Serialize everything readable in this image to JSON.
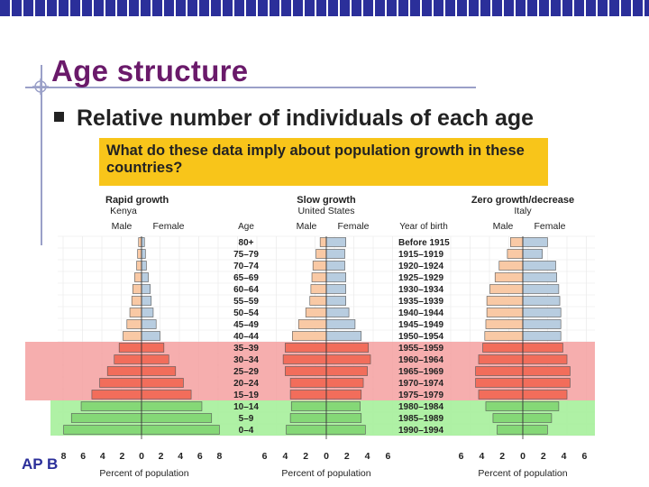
{
  "slide": {
    "title": "Age structure",
    "bullet": "Relative number of individuals of each age",
    "question": "What do these data imply about population growth in these countries?",
    "footer": "AP B"
  },
  "chart_data": {
    "type": "bar",
    "subtype": "population-pyramids",
    "age_groups": [
      "80+",
      "75–79",
      "70–74",
      "65–69",
      "60–64",
      "55–59",
      "50–54",
      "45–49",
      "40–44",
      "35–39",
      "30–34",
      "25–29",
      "20–24",
      "15–19",
      "10–14",
      "5–9",
      "0–4"
    ],
    "years_of_birth": [
      "Before 1915",
      "1915–1919",
      "1920–1924",
      "1925–1929",
      "1930–1934",
      "1935–1939",
      "1940–1944",
      "1945–1949",
      "1950–1954",
      "1955–1959",
      "1960–1964",
      "1965–1969",
      "1970–1974",
      "1975–1979",
      "1980–1984",
      "1985–1989",
      "1990–1994"
    ],
    "column_headers": {
      "age": "Age",
      "year_of_birth": "Year of birth"
    },
    "sex_labels": {
      "male": "Male",
      "female": "Female"
    },
    "xlabel": "Percent of population",
    "pyramids": [
      {
        "heading": "Rapid growth",
        "country": "Kenya",
        "ticks": [
          "8",
          "6",
          "4",
          "2",
          "0",
          "2",
          "4",
          "6",
          "8"
        ],
        "xmax": 8,
        "male": [
          0.3,
          0.4,
          0.5,
          0.7,
          0.9,
          1.0,
          1.2,
          1.5,
          1.9,
          2.3,
          2.8,
          3.5,
          4.3,
          5.1,
          6.2,
          7.2,
          8.0
        ],
        "female": [
          0.3,
          0.4,
          0.5,
          0.7,
          0.9,
          1.0,
          1.2,
          1.5,
          1.9,
          2.3,
          2.8,
          3.5,
          4.3,
          5.1,
          6.2,
          7.2,
          8.0
        ]
      },
      {
        "heading": "Slow growth",
        "country": "United States",
        "ticks": [
          "6",
          "4",
          "2",
          "0",
          "2",
          "4",
          "6"
        ],
        "xmax": 6,
        "male": [
          0.6,
          1.0,
          1.3,
          1.4,
          1.5,
          1.6,
          2.0,
          2.7,
          3.3,
          4.0,
          4.2,
          4.0,
          3.5,
          3.5,
          3.4,
          3.5,
          3.9
        ],
        "female": [
          1.9,
          1.8,
          1.8,
          1.9,
          1.9,
          1.9,
          2.2,
          2.8,
          3.4,
          4.1,
          4.3,
          4.0,
          3.6,
          3.4,
          3.3,
          3.4,
          3.8
        ]
      },
      {
        "heading": "Zero growth/decrease",
        "country": "Italy",
        "ticks": [
          "6",
          "4",
          "2",
          "0",
          "2",
          "4",
          "6"
        ],
        "xmax": 6,
        "male": [
          1.2,
          1.5,
          2.3,
          2.7,
          3.2,
          3.5,
          3.5,
          3.6,
          3.7,
          3.9,
          4.3,
          4.6,
          4.6,
          4.3,
          3.6,
          2.9,
          2.5
        ],
        "female": [
          2.4,
          1.9,
          3.2,
          3.3,
          3.5,
          3.6,
          3.7,
          3.7,
          3.7,
          3.9,
          4.3,
          4.6,
          4.6,
          4.3,
          3.5,
          2.8,
          2.4
        ]
      }
    ],
    "colors": {
      "male_old": "#b8cde0",
      "female_old": "#f9c9a5",
      "grid_post": "#f7d2b2",
      "male_mid": "#fff1e0",
      "band_red": "#f5a0a0",
      "band_green": "#a6ef9b",
      "bar_red": "#f26d5b",
      "bar_green": "#85d877",
      "bar_neutral": "#d9d9d9"
    }
  }
}
